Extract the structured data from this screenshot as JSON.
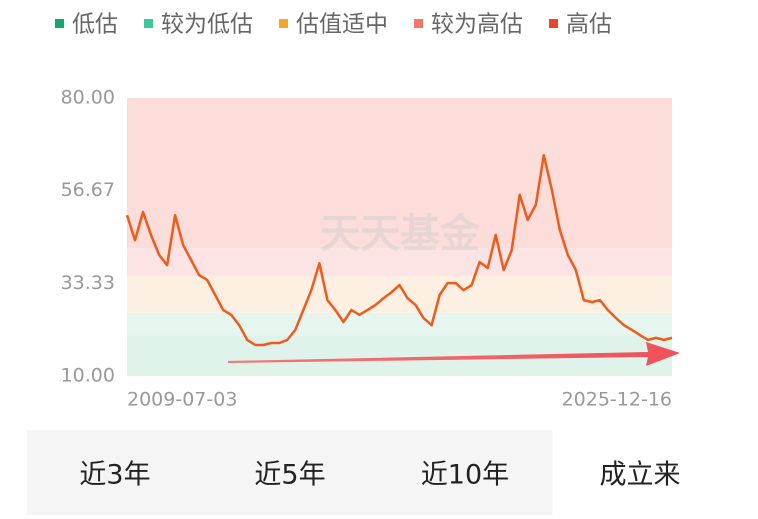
{
  "chart_data": {
    "type": "line",
    "bands": [
      {
        "name": "低估",
        "color": "#14a570",
        "fill": "#dff3ea",
        "from": 10,
        "to": 20.3
      },
      {
        "name": "较为低估",
        "color": "#3cc9a2",
        "fill": "#e6f5ee",
        "from": 20.3,
        "to": 25.9
      },
      {
        "name": "估值适中",
        "color": "#f5a623",
        "fill": "#fdf0e2",
        "from": 25.9,
        "to": 35.2
      },
      {
        "name": "较为高估",
        "color": "#f07a68",
        "fill": "#fde4e4",
        "from": 35.2,
        "to": 42.2
      },
      {
        "name": "高估",
        "color": "#e8452c",
        "fill": "#fdddd9",
        "from": 42.2,
        "to": 80
      }
    ],
    "ylim": [
      10,
      80
    ],
    "yticks": [
      {
        "value": 80,
        "label": "80.00"
      },
      56.67,
      33.33,
      {
        "value": 10,
        "label": "10.00"
      }
    ],
    "x_labels": [
      "2009-07-03",
      "2025-12-16"
    ],
    "series": [
      {
        "color": "#f05a1a",
        "values": [
          50.5,
          44.2,
          51.3,
          45.5,
          40.5,
          37.9,
          50.5,
          43,
          39.2,
          35.4,
          34.2,
          30.4,
          26.6,
          25.4,
          22.8,
          19.1,
          17.8,
          17.8,
          18.3,
          18.3,
          19.1,
          21.6,
          26.6,
          31.6,
          38.4,
          29.1,
          26.6,
          23.6,
          26.6,
          25.4,
          26.6,
          27.9,
          29.6,
          31.1,
          32.9,
          29.6,
          27.9,
          24.6,
          22.8,
          30.4,
          33.4,
          33.4,
          31.6,
          32.9,
          38.7,
          37.2,
          45.5,
          36.7,
          41.7,
          55.6,
          49.3,
          53.1,
          65.6,
          56.9,
          46.8,
          40.5,
          36.7,
          29.1,
          28.6,
          29.1,
          26.6,
          24.6,
          22.8,
          21.6,
          20.3,
          19.1,
          19.6,
          19.1,
          19.6
        ]
      }
    ],
    "watermark": "天天基金"
  },
  "tabs": [
    "近3年",
    "近5年",
    "近10年",
    "成立来"
  ],
  "selected_tab": 3
}
